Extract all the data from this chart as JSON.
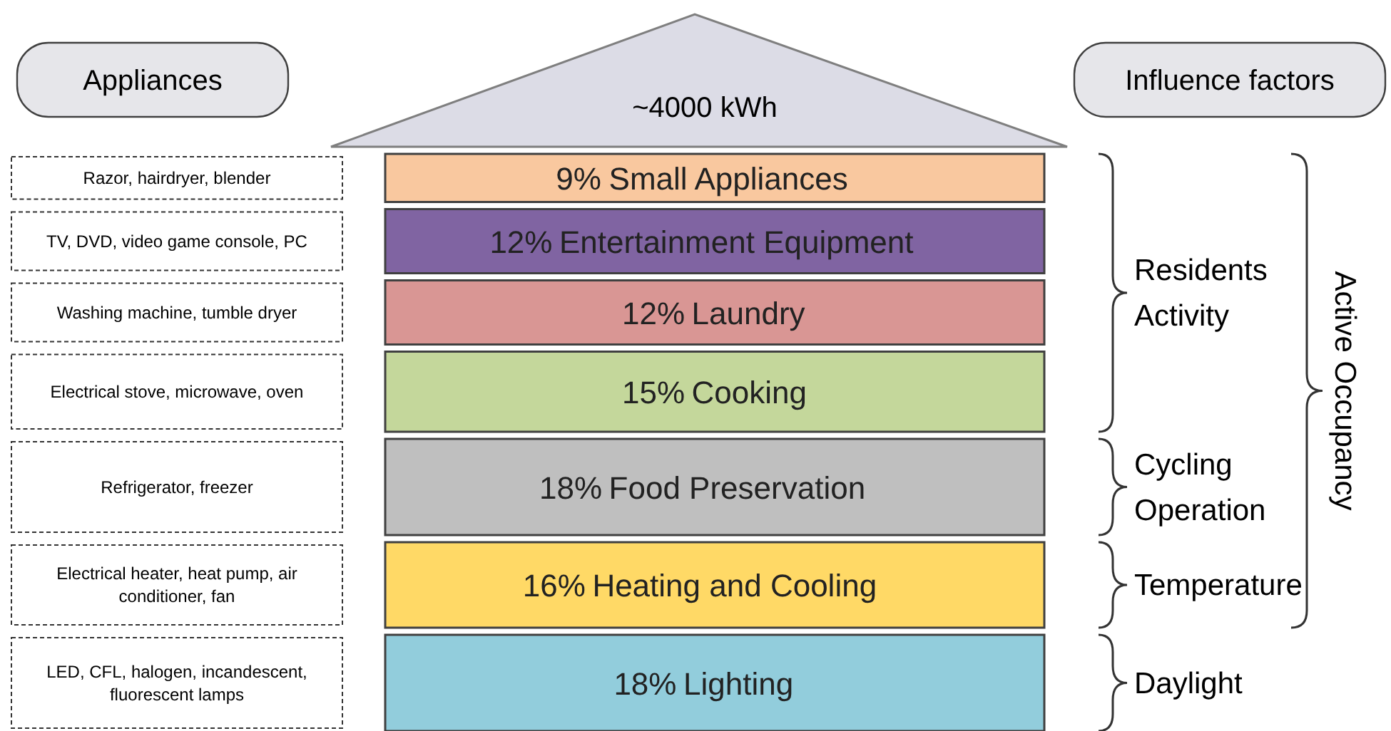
{
  "chart_data": {
    "type": "other",
    "title": "~4000 kWh",
    "categories": [
      "Small Appliances",
      "Entertainment Equipment",
      "Laundry",
      "Cooking",
      "Food Preservation",
      "Heating and Cooling",
      "Lighting"
    ],
    "values": [
      9,
      12,
      12,
      15,
      18,
      16,
      18
    ],
    "value_labels": [
      "9%",
      "12%",
      "12%",
      "15%",
      "18%",
      "16%",
      "18%"
    ],
    "colors": [
      "#f9c89f",
      "#8064a2",
      "#d99694",
      "#c4d79b",
      "#bfbfbf",
      "#ffd966",
      "#92cddc"
    ],
    "annotations": [
      "Appliances",
      "Influence factors",
      "Razor, hairdryer, blender",
      "TV, DVD, video game console, PC",
      "Washing machine, tumble dryer",
      "Electrical stove, microwave, oven",
      "Refrigerator, freezer",
      "Electrical heater, heat pump, air conditioner, fan",
      "LED, CFL, halogen, incandescent, fluorescent lamps",
      "Residents Activity",
      "Cycling Operation",
      "Temperature",
      "Daylight",
      "Active Occupancy"
    ]
  }
}
